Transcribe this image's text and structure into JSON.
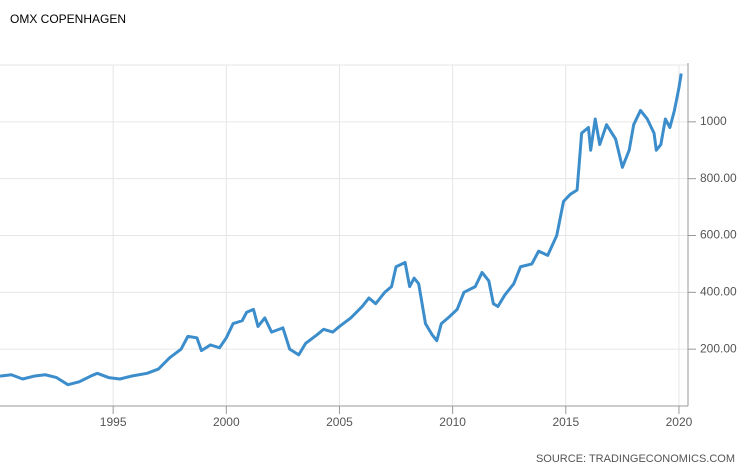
{
  "chart_data": {
    "type": "line",
    "title": "OMX COPENHAGEN",
    "source": "SOURCE: TRADINGECONOMICS.COM",
    "grid": true,
    "x": [
      1990.0,
      1990.5,
      1991.0,
      1991.5,
      1992.0,
      1992.5,
      1993.0,
      1993.5,
      1994.0,
      1994.3,
      1994.8,
      1995.3,
      1995.8,
      1996.5,
      1997.0,
      1997.5,
      1998.0,
      1998.3,
      1998.7,
      1998.9,
      1999.3,
      1999.7,
      2000.0,
      2000.3,
      2000.7,
      2000.9,
      2001.2,
      2001.4,
      2001.7,
      2002.0,
      2002.5,
      2002.8,
      2003.2,
      2003.5,
      2004.0,
      2004.3,
      2004.7,
      2005.0,
      2005.5,
      2006.0,
      2006.3,
      2006.6,
      2007.0,
      2007.3,
      2007.5,
      2007.9,
      2008.1,
      2008.3,
      2008.5,
      2008.8,
      2009.1,
      2009.3,
      2009.5,
      2009.8,
      2010.2,
      2010.5,
      2011.0,
      2011.3,
      2011.6,
      2011.8,
      2012.0,
      2012.3,
      2012.7,
      2013.0,
      2013.5,
      2013.8,
      2014.2,
      2014.6,
      2014.9,
      2015.2,
      2015.5,
      2015.7,
      2016.0,
      2016.1,
      2016.3,
      2016.5,
      2016.8,
      2017.2,
      2017.5,
      2017.8,
      2018.0,
      2018.3,
      2018.6,
      2018.9,
      2019.0,
      2019.2,
      2019.4,
      2019.6,
      2019.8,
      2020.0,
      2020.1
    ],
    "series": [
      {
        "name": "OMX COPENHAGEN",
        "color": "#3c8dcb",
        "values": [
          105,
          110,
          95,
          105,
          110,
          100,
          75,
          85,
          105,
          115,
          100,
          95,
          105,
          115,
          130,
          170,
          200,
          245,
          240,
          195,
          215,
          205,
          240,
          290,
          300,
          330,
          340,
          280,
          310,
          260,
          275,
          200,
          180,
          220,
          250,
          270,
          260,
          280,
          310,
          350,
          380,
          360,
          400,
          420,
          490,
          505,
          420,
          450,
          430,
          290,
          250,
          230,
          290,
          310,
          340,
          400,
          420,
          470,
          440,
          360,
          350,
          390,
          430,
          490,
          500,
          545,
          530,
          600,
          720,
          745,
          760,
          960,
          980,
          900,
          1010,
          920,
          990,
          940,
          840,
          900,
          990,
          1040,
          1010,
          960,
          900,
          920,
          1010,
          980,
          1040,
          1120,
          1170
        ]
      }
    ],
    "xlim": [
      1990,
      2020.4
    ],
    "xticks": [
      1995,
      2000,
      2005,
      2010,
      2015,
      2020
    ],
    "ylim": [
      0,
      1200
    ],
    "yticks": [
      {
        "value": 200,
        "label": "200.00"
      },
      {
        "value": 400,
        "label": "400.00"
      },
      {
        "value": 600,
        "label": "600.00"
      },
      {
        "value": 800,
        "label": "800.00"
      },
      1000
    ]
  }
}
